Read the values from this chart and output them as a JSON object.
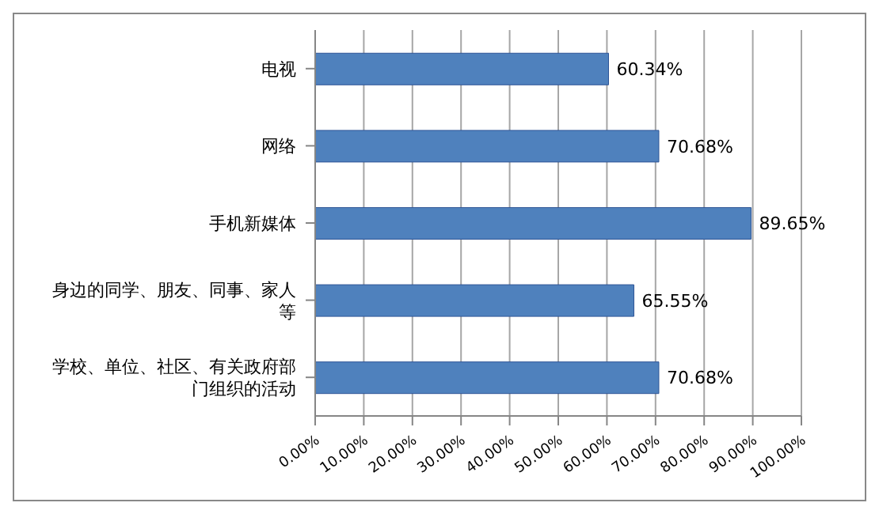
{
  "chart_data": {
    "type": "bar",
    "orientation": "horizontal",
    "categories": [
      "电视",
      "网络",
      "手机新媒体",
      "身边的同学、朋友、同事、家人等",
      "学校、单位、社区、有关政府部门组织的活动"
    ],
    "values": [
      60.34,
      70.68,
      89.65,
      65.55,
      70.68
    ],
    "value_labels": [
      "60.34%",
      "70.68%",
      "89.65%",
      "65.55%",
      "70.68%"
    ],
    "color": "#4f81bd",
    "xlim": [
      0,
      100
    ],
    "xticks": [
      {
        "value": 0,
        "label": "0.00%"
      },
      {
        "value": 10,
        "label": "10.00%"
      },
      {
        "value": 20,
        "label": "20.00%"
      },
      {
        "value": 30,
        "label": "30.00%"
      },
      {
        "value": 40,
        "label": "40.00%"
      },
      {
        "value": 50,
        "label": "50.00%"
      },
      {
        "value": 60,
        "label": "60.00%"
      },
      {
        "value": 70,
        "label": "70.00%"
      },
      {
        "value": 80,
        "label": "80.00%"
      },
      {
        "value": 90,
        "label": "90.00%"
      },
      {
        "value": 100,
        "label": "100.00%"
      }
    ],
    "grid": "x",
    "legend": false
  }
}
